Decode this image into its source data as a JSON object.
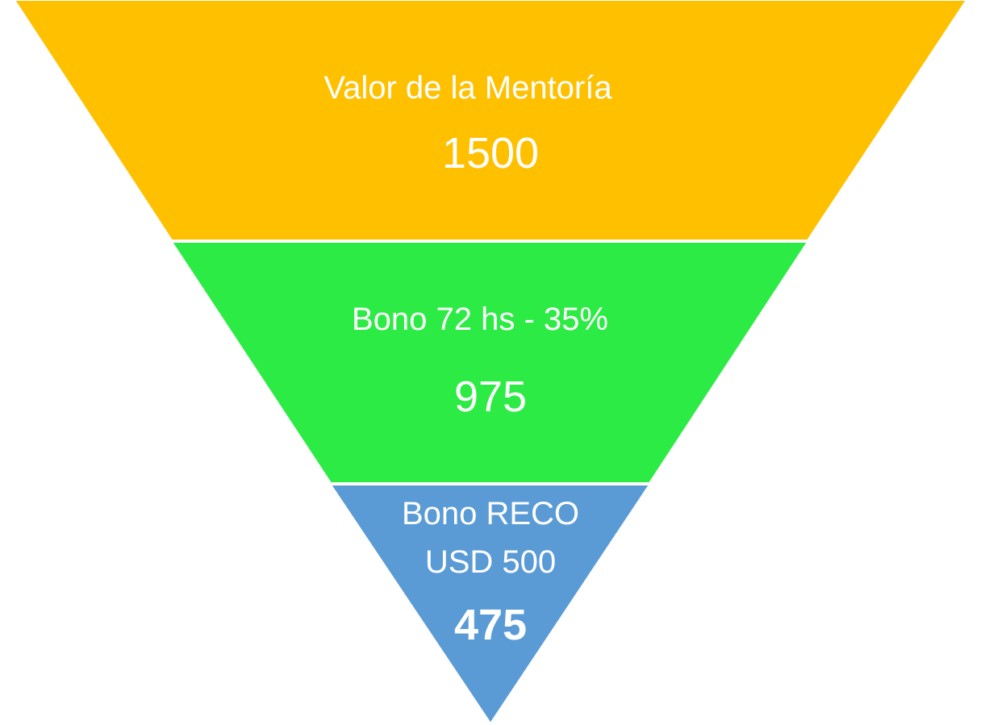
{
  "stages": [
    {
      "label_lines": [
        "Valor de la Mentoría"
      ],
      "value": "1500",
      "color": "#FFC000",
      "value_color": "#FFFFFF"
    },
    {
      "label_lines": [
        "Bono 72 hs - 35%"
      ],
      "value": "975",
      "color": "#2DEB45",
      "value_color": "#FFFFFF"
    },
    {
      "label_lines": [
        "Bono RECO",
        "USD 500"
      ],
      "value": "475",
      "color": "#5B9BD5",
      "value_color": "#FFFF00"
    }
  ]
}
